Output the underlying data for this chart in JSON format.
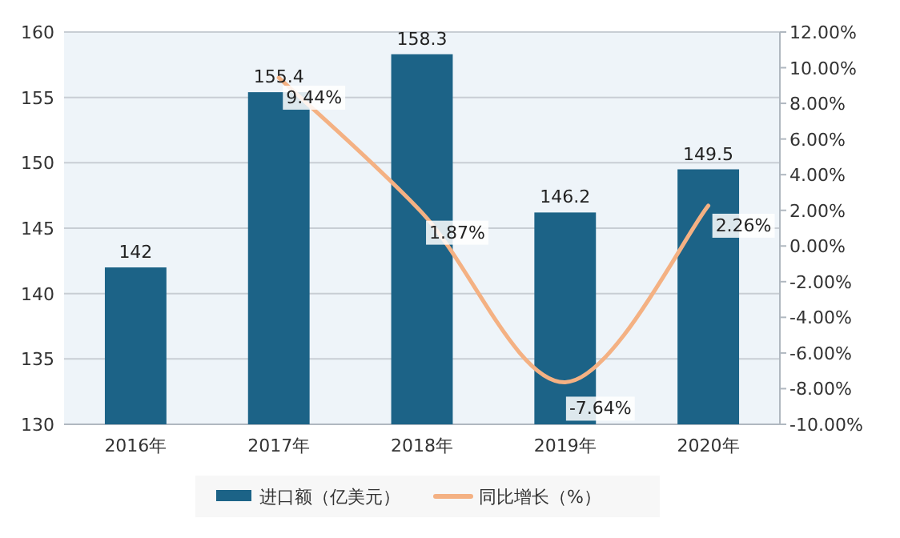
{
  "chart_data": {
    "type": "bar",
    "categories": [
      "2016年",
      "2017年",
      "2018年",
      "2019年",
      "2020年"
    ],
    "series": [
      {
        "name": "进口额（亿美元）",
        "color": "#1c6387",
        "values": [
          142,
          155.4,
          158.3,
          146.2,
          149.5
        ],
        "value_labels": [
          "142",
          "155.4",
          "158.3",
          "146.2",
          "149.5"
        ]
      },
      {
        "name": "同比增长（%）",
        "type": "line",
        "axis": "y2",
        "color": "#f4b183",
        "values": [
          null,
          9.44,
          1.87,
          -7.64,
          2.26
        ],
        "value_labels": [
          null,
          "9.44%",
          "1.87%",
          "-7.64%",
          "2.26%"
        ]
      }
    ],
    "ylim": [
      130,
      160
    ],
    "yticks": [
      130,
      135,
      140,
      145,
      150,
      155,
      160
    ],
    "y2lim": [
      -10,
      12
    ],
    "y2ticks": [
      {
        "value": -10,
        "label": "-10.00%"
      },
      {
        "value": -8,
        "label": "-8.00%"
      },
      {
        "value": -6,
        "label": "-6.00%"
      },
      {
        "value": -4,
        "label": "-4.00%"
      },
      {
        "value": -2,
        "label": "-2.00%"
      },
      {
        "value": 0,
        "label": "0.00%"
      },
      {
        "value": 2,
        "label": "2.00%"
      },
      {
        "value": 4,
        "label": "4.00%"
      },
      {
        "value": 6,
        "label": "6.00%"
      },
      {
        "value": 8,
        "label": "8.00%"
      },
      {
        "value": 10,
        "label": "10.00%"
      },
      {
        "value": 12,
        "label": "12.00%"
      }
    ],
    "grid": "y",
    "legend": "bottom",
    "line_style": "solid",
    "marker": "none"
  }
}
